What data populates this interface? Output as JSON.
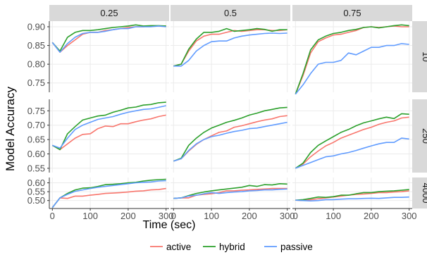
{
  "chart_data": {
    "type": "line",
    "facet_layout": "rows: sample size; columns: proportion",
    "ylabel": "Model Accuracy",
    "xlabel": "Time (sec)",
    "x_ticks": [
      0,
      100,
      200,
      300
    ],
    "xlim": [
      -8,
      308
    ],
    "colors": {
      "active": "#F8766D",
      "hybrid": "#2CA02C",
      "passive": "#619CFF"
    },
    "column_labels": [
      "0.25",
      "0.5",
      "0.75"
    ],
    "row_labels": [
      "10",
      "250",
      "4000"
    ],
    "row_y": [
      {
        "ylim": [
          0.725,
          0.915
        ],
        "ticks": [
          0.75,
          0.8,
          0.85,
          0.9
        ],
        "tick_labels": [
          "0.75",
          "0.80",
          "0.85",
          "0.90"
        ]
      },
      {
        "ylim": [
          0.535,
          0.79
        ],
        "ticks": [
          0.55,
          0.6,
          0.65,
          0.7,
          0.75
        ],
        "tick_labels": [
          "0.55",
          "0.60",
          "0.65",
          "0.70",
          "0.75"
        ]
      },
      {
        "ylim": [
          0.455,
          0.63
        ],
        "ticks": [
          0.5,
          0.55,
          0.6
        ],
        "tick_labels": [
          "0.50",
          "0.55",
          "0.60"
        ]
      }
    ],
    "x": [
      0,
      20,
      40,
      60,
      80,
      100,
      120,
      140,
      160,
      180,
      200,
      220,
      240,
      260,
      280,
      300
    ],
    "panels": [
      {
        "row": 0,
        "col": 0,
        "series": [
          {
            "name": "active",
            "values": [
              0.858,
              0.832,
              0.85,
              0.865,
              0.88,
              0.885,
              0.885,
              0.89,
              0.892,
              0.895,
              0.898,
              0.9,
              0.9,
              0.902,
              0.902,
              0.902
            ]
          },
          {
            "name": "hybrid",
            "values": [
              0.858,
              0.835,
              0.872,
              0.885,
              0.89,
              0.89,
              0.892,
              0.895,
              0.898,
              0.9,
              0.902,
              0.905,
              0.902,
              0.903,
              0.903,
              0.902
            ]
          },
          {
            "name": "passive",
            "values": [
              0.858,
              0.832,
              0.855,
              0.872,
              0.882,
              0.885,
              0.885,
              0.888,
              0.892,
              0.895,
              0.895,
              0.9,
              0.9,
              0.9,
              0.902,
              0.9
            ]
          }
        ]
      },
      {
        "row": 0,
        "col": 1,
        "series": [
          {
            "name": "active",
            "values": [
              0.795,
              0.8,
              0.835,
              0.862,
              0.875,
              0.88,
              0.88,
              0.885,
              0.89,
              0.888,
              0.89,
              0.892,
              0.892,
              0.89,
              0.89,
              0.892
            ]
          },
          {
            "name": "hybrid",
            "values": [
              0.795,
              0.8,
              0.84,
              0.867,
              0.885,
              0.885,
              0.888,
              0.895,
              0.888,
              0.89,
              0.892,
              0.895,
              0.893,
              0.888,
              0.892,
              0.892
            ]
          },
          {
            "name": "passive",
            "values": [
              0.795,
              0.795,
              0.81,
              0.835,
              0.85,
              0.86,
              0.862,
              0.862,
              0.87,
              0.875,
              0.878,
              0.88,
              0.882,
              0.883,
              0.882,
              0.883
            ]
          }
        ]
      },
      {
        "row": 0,
        "col": 2,
        "series": [
          {
            "name": "active",
            "values": [
              0.72,
              0.77,
              0.83,
              0.86,
              0.87,
              0.878,
              0.88,
              0.885,
              0.89,
              0.898,
              0.9,
              0.898,
              0.9,
              0.902,
              0.9,
              0.9
            ]
          },
          {
            "name": "hybrid",
            "values": [
              0.72,
              0.775,
              0.838,
              0.865,
              0.875,
              0.882,
              0.885,
              0.89,
              0.893,
              0.898,
              0.9,
              0.897,
              0.9,
              0.903,
              0.905,
              0.903
            ]
          },
          {
            "name": "passive",
            "values": [
              0.72,
              0.745,
              0.775,
              0.8,
              0.805,
              0.805,
              0.81,
              0.83,
              0.825,
              0.835,
              0.845,
              0.845,
              0.85,
              0.85,
              0.855,
              0.853
            ]
          }
        ]
      },
      {
        "row": 1,
        "col": 0,
        "series": [
          {
            "name": "active",
            "values": [
              0.63,
              0.615,
              0.635,
              0.655,
              0.668,
              0.67,
              0.688,
              0.697,
              0.695,
              0.705,
              0.705,
              0.712,
              0.718,
              0.722,
              0.73,
              0.735
            ]
          },
          {
            "name": "hybrid",
            "values": [
              0.63,
              0.615,
              0.67,
              0.695,
              0.718,
              0.725,
              0.732,
              0.735,
              0.745,
              0.752,
              0.76,
              0.763,
              0.77,
              0.772,
              0.778,
              0.78
            ]
          },
          {
            "name": "passive",
            "values": [
              0.63,
              0.62,
              0.655,
              0.685,
              0.7,
              0.71,
              0.72,
              0.725,
              0.73,
              0.738,
              0.745,
              0.75,
              0.755,
              0.757,
              0.762,
              0.768
            ]
          }
        ]
      },
      {
        "row": 1,
        "col": 1,
        "series": [
          {
            "name": "active",
            "values": [
              0.575,
              0.583,
              0.61,
              0.633,
              0.65,
              0.663,
              0.675,
              0.68,
              0.693,
              0.698,
              0.705,
              0.712,
              0.718,
              0.722,
              0.73,
              0.733
            ]
          },
          {
            "name": "hybrid",
            "values": [
              0.575,
              0.585,
              0.63,
              0.655,
              0.675,
              0.69,
              0.7,
              0.71,
              0.717,
              0.725,
              0.735,
              0.742,
              0.75,
              0.755,
              0.76,
              0.762
            ]
          },
          {
            "name": "passive",
            "values": [
              0.575,
              0.583,
              0.612,
              0.635,
              0.65,
              0.66,
              0.665,
              0.672,
              0.678,
              0.682,
              0.688,
              0.69,
              0.695,
              0.7,
              0.705,
              0.71
            ]
          }
        ]
      },
      {
        "row": 1,
        "col": 2,
        "series": [
          {
            "name": "active",
            "values": [
              0.55,
              0.565,
              0.59,
              0.61,
              0.628,
              0.64,
              0.655,
              0.665,
              0.675,
              0.685,
              0.693,
              0.703,
              0.71,
              0.715,
              0.725,
              0.728
            ]
          },
          {
            "name": "hybrid",
            "values": [
              0.55,
              0.568,
              0.605,
              0.63,
              0.645,
              0.66,
              0.675,
              0.685,
              0.698,
              0.708,
              0.715,
              0.722,
              0.728,
              0.723,
              0.74,
              0.738
            ]
          },
          {
            "name": "passive",
            "values": [
              0.55,
              0.56,
              0.57,
              0.58,
              0.59,
              0.593,
              0.6,
              0.605,
              0.612,
              0.62,
              0.628,
              0.635,
              0.64,
              0.64,
              0.655,
              0.652
            ]
          }
        ]
      },
      {
        "row": 2,
        "col": 0,
        "series": [
          {
            "name": "active",
            "values": [
              0.46,
              0.515,
              0.512,
              0.525,
              0.525,
              0.53,
              0.535,
              0.54,
              0.542,
              0.545,
              0.548,
              0.553,
              0.555,
              0.56,
              0.562,
              0.568
            ]
          },
          {
            "name": "hybrid",
            "values": [
              0.46,
              0.515,
              0.54,
              0.56,
              0.57,
              0.572,
              0.58,
              0.59,
              0.592,
              0.595,
              0.6,
              0.603,
              0.61,
              0.615,
              0.618,
              0.62
            ]
          },
          {
            "name": "passive",
            "values": [
              0.46,
              0.515,
              0.535,
              0.552,
              0.56,
              0.568,
              0.575,
              0.58,
              0.585,
              0.59,
              0.595,
              0.6,
              0.603,
              0.605,
              0.61,
              0.612
            ]
          }
        ]
      },
      {
        "row": 2,
        "col": 1,
        "series": [
          {
            "name": "active",
            "values": [
              0.512,
              0.515,
              0.515,
              0.53,
              0.535,
              0.538,
              0.545,
              0.555,
              0.555,
              0.558,
              0.56,
              0.563,
              0.565,
              0.568,
              0.568,
              0.568
            ]
          },
          {
            "name": "hybrid",
            "values": [
              0.512,
              0.515,
              0.528,
              0.54,
              0.548,
              0.555,
              0.56,
              0.565,
              0.57,
              0.575,
              0.585,
              0.58,
              0.59,
              0.588,
              0.595,
              0.593
            ]
          },
          {
            "name": "passive",
            "values": [
              0.512,
              0.515,
              0.525,
              0.53,
              0.538,
              0.545,
              0.54,
              0.545,
              0.548,
              0.55,
              0.555,
              0.557,
              0.56,
              0.56,
              0.563,
              0.565
            ]
          }
        ]
      },
      {
        "row": 2,
        "col": 2,
        "series": [
          {
            "name": "active",
            "values": [
              0.502,
              0.5,
              0.505,
              0.51,
              0.515,
              0.52,
              0.525,
              0.53,
              0.535,
              0.537,
              0.54,
              0.545,
              0.545,
              0.548,
              0.55,
              0.555
            ]
          },
          {
            "name": "hybrid",
            "values": [
              0.502,
              0.505,
              0.512,
              0.52,
              0.518,
              0.522,
              0.53,
              0.53,
              0.538,
              0.545,
              0.545,
              0.55,
              0.553,
              0.555,
              0.558,
              0.562
            ]
          },
          {
            "name": "passive",
            "values": [
              0.502,
              0.5,
              0.498,
              0.5,
              0.505,
              0.505,
              0.508,
              0.51,
              0.51,
              0.512,
              0.513,
              0.512,
              0.515,
              0.518,
              0.518,
              0.52
            ]
          }
        ]
      }
    ],
    "legend": {
      "placement": "bottom",
      "items": [
        "active",
        "hybrid",
        "passive"
      ]
    },
    "panel_background": "#FFFFFF",
    "strip_background": "#D9D9D9",
    "grid_color": "#EBEBEB"
  }
}
